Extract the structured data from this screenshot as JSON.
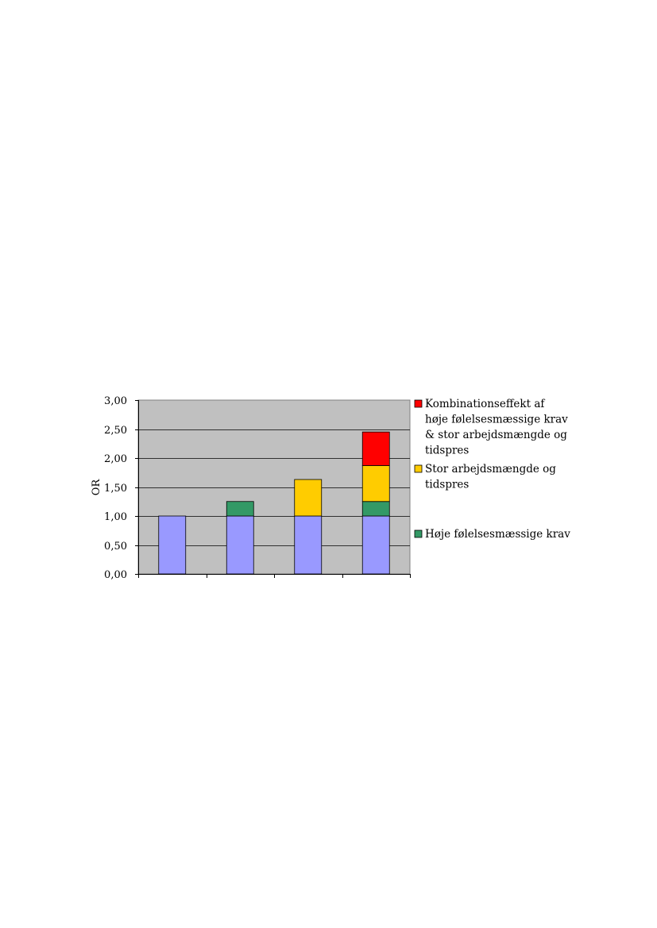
{
  "chart_data": {
    "type": "bar",
    "stacked": true,
    "ylabel": "OR",
    "ylim": [
      0,
      3
    ],
    "yticks": [
      "0,00",
      "0,50",
      "1,00",
      "1,50",
      "2,00",
      "2,50",
      "3,00"
    ],
    "ytick_values": [
      0,
      0.5,
      1,
      1.5,
      2,
      2.5,
      3
    ],
    "categories": [
      "",
      "",
      "",
      ""
    ],
    "grid": true,
    "legend_position": "right",
    "plot_background": "#c0c0c0",
    "series": [
      {
        "key": "base",
        "color": "#9999ff",
        "values": [
          1.0,
          1.0,
          1.0,
          1.0
        ]
      },
      {
        "key": "hoje",
        "name": "Høje følelsesmæssige krav",
        "color": "#339966",
        "values": [
          0,
          0.25,
          0,
          0.25
        ]
      },
      {
        "key": "stor",
        "name": "Stor arbejdsmængde og tidspres",
        "color": "#ffcc00",
        "values": [
          0,
          0,
          0.63,
          0.62
        ]
      },
      {
        "key": "komb",
        "name": "Kombinationseffekt af høje følelsesmæssige krav & stor arbejdsmængde og tidspres",
        "color": "#ff0000",
        "values": [
          0,
          0,
          0,
          0.58
        ]
      }
    ],
    "legend": [
      {
        "key": "komb",
        "lines": [
          "Kombinationseffekt af",
          "høje følelsesmæssige krav",
          "& stor arbejdsmængde og",
          "tidspres"
        ]
      },
      {
        "key": "stor",
        "lines": [
          "Stor arbejdsmængde og",
          "tidspres"
        ]
      },
      {
        "key": "hoje",
        "lines": [
          "Høje følelsesmæssige krav"
        ]
      }
    ]
  }
}
